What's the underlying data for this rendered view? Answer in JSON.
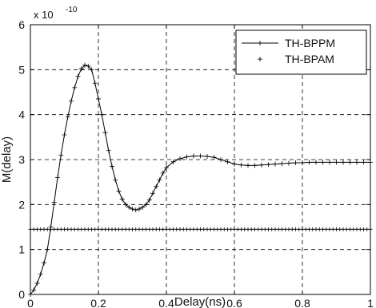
{
  "chart_data": {
    "type": "line",
    "title": "",
    "xlabel": "Delay(ns)",
    "ylabel": "M(delay)",
    "y_multiplier": {
      "base": "x 10",
      "exponent": "-10"
    },
    "xlim": [
      0,
      1
    ],
    "ylim": [
      0,
      6
    ],
    "x_ticks": [
      0,
      0.2,
      0.4,
      0.6,
      0.8,
      1
    ],
    "x_tick_labels": [
      "0",
      "0.2",
      "0.4",
      "0.6",
      "0.8",
      "1"
    ],
    "y_ticks": [
      0,
      1,
      2,
      3,
      4,
      5,
      6
    ],
    "y_tick_labels": [
      "0",
      "1",
      "2",
      "3",
      "4",
      "5",
      "6"
    ],
    "grid": true,
    "legend": "top-right",
    "series": [
      {
        "name": "TH-BPPM",
        "color": "#000000",
        "x": [
          0.0,
          0.01,
          0.02,
          0.03,
          0.04,
          0.05,
          0.06,
          0.07,
          0.08,
          0.09,
          0.1,
          0.11,
          0.12,
          0.13,
          0.14,
          0.15,
          0.16,
          0.17,
          0.18,
          0.19,
          0.2,
          0.21,
          0.22,
          0.23,
          0.24,
          0.25,
          0.26,
          0.27,
          0.28,
          0.29,
          0.3,
          0.31,
          0.32,
          0.33,
          0.34,
          0.35,
          0.36,
          0.37,
          0.38,
          0.39,
          0.4,
          0.42,
          0.44,
          0.46,
          0.48,
          0.5,
          0.52,
          0.54,
          0.56,
          0.58,
          0.6,
          0.62,
          0.64,
          0.66,
          0.68,
          0.7,
          0.72,
          0.74,
          0.76,
          0.78,
          0.8,
          0.82,
          0.84,
          0.86,
          0.88,
          0.9,
          0.92,
          0.94,
          0.96,
          0.98,
          1.0
        ],
        "y": [
          0.0,
          0.1,
          0.25,
          0.45,
          0.7,
          1.0,
          1.5,
          2.05,
          2.6,
          3.1,
          3.55,
          3.95,
          4.3,
          4.6,
          4.85,
          5.02,
          5.1,
          5.08,
          5.0,
          4.7,
          4.35,
          4.0,
          3.6,
          3.2,
          2.85,
          2.55,
          2.3,
          2.12,
          2.0,
          1.94,
          1.9,
          1.88,
          1.9,
          1.94,
          2.0,
          2.1,
          2.25,
          2.4,
          2.55,
          2.7,
          2.82,
          2.95,
          3.02,
          3.06,
          3.08,
          3.08,
          3.07,
          3.05,
          3.0,
          2.95,
          2.9,
          2.88,
          2.87,
          2.87,
          2.88,
          2.89,
          2.9,
          2.91,
          2.92,
          2.93,
          2.93,
          2.94,
          2.94,
          2.94,
          2.94,
          2.94,
          2.94,
          2.94,
          2.94,
          2.94,
          2.94
        ]
      },
      {
        "name": "TH-BPAM",
        "color": "#000000",
        "x": [
          0.0,
          1.0
        ],
        "y": [
          1.45,
          1.45
        ]
      }
    ]
  }
}
